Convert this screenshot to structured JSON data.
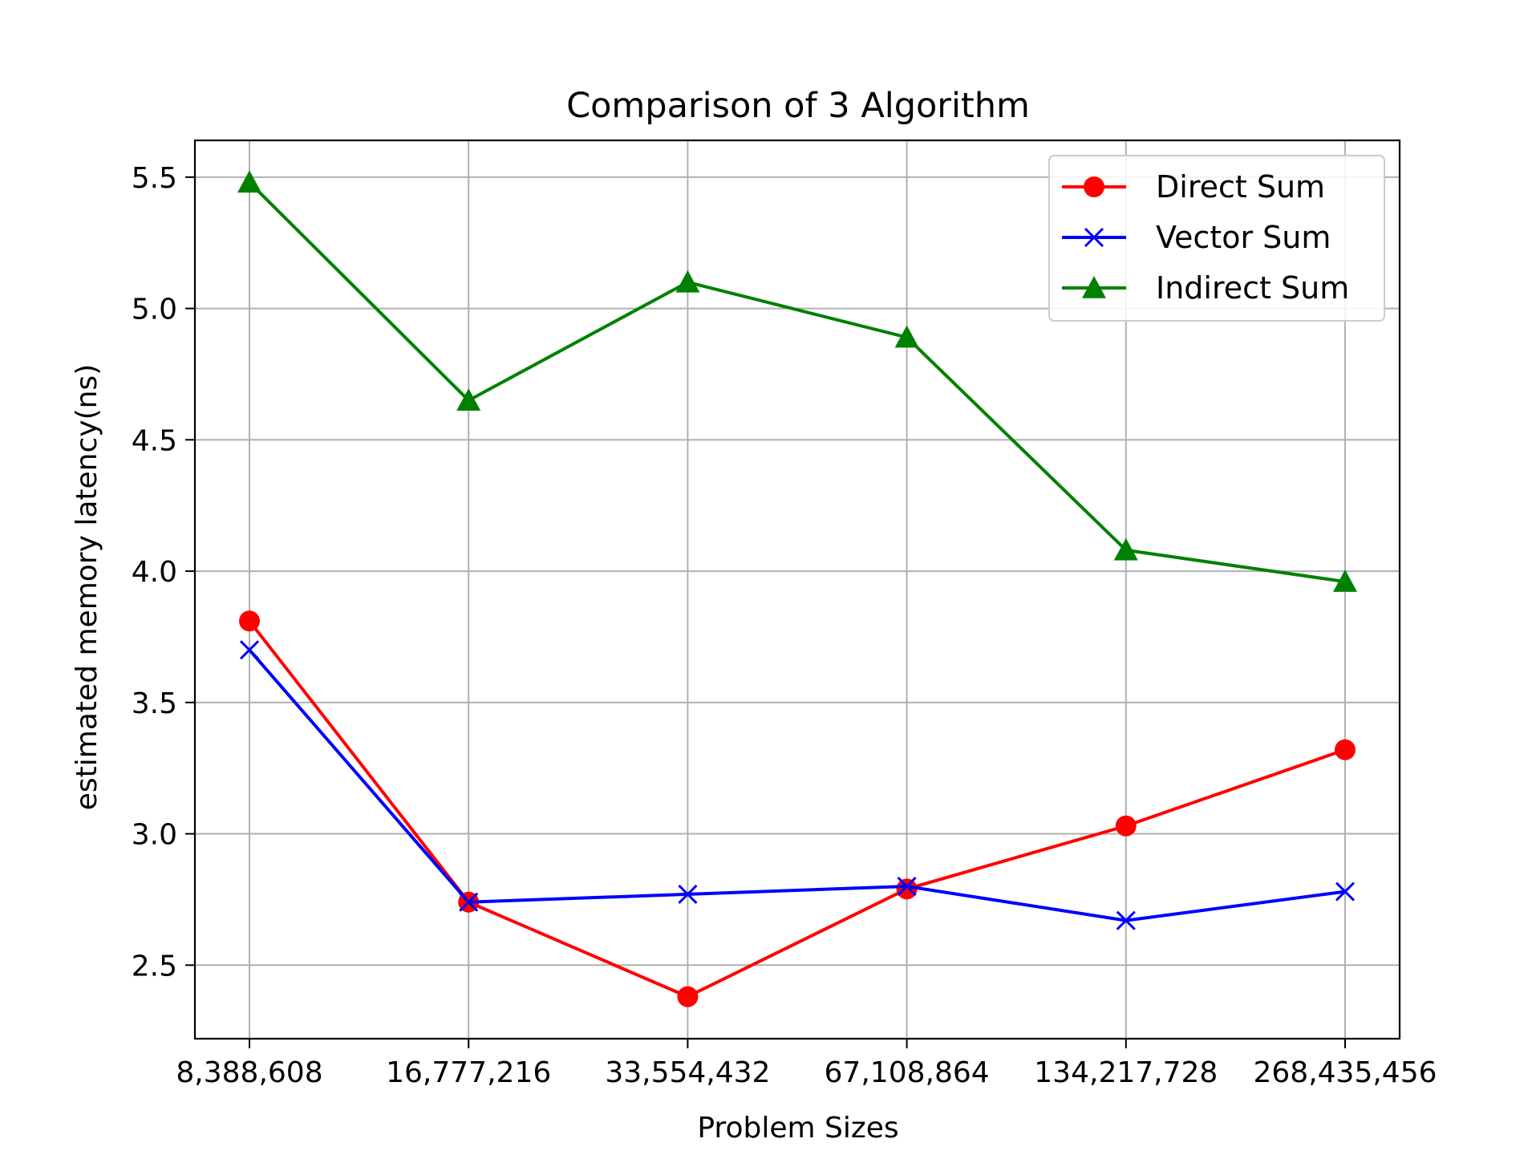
{
  "chart_data": {
    "type": "line",
    "title": "Comparison of 3 Algorithm",
    "xlabel": "Problem Sizes",
    "ylabel": "estimated memory latency(ns)",
    "categories": [
      "8,388,608",
      "16,777,216",
      "33,554,432",
      "67,108,864",
      "134,217,728",
      "268,435,456"
    ],
    "y_ticks": [
      "2.5",
      "3.0",
      "3.5",
      "4.0",
      "4.5",
      "5.0",
      "5.5"
    ],
    "ylim": [
      2.22,
      5.64
    ],
    "grid": true,
    "legend_position": "top-right",
    "series": [
      {
        "name": "Direct Sum",
        "color": "#ff0000",
        "marker": "circle",
        "values": [
          3.81,
          2.74,
          2.38,
          2.79,
          3.03,
          3.32
        ]
      },
      {
        "name": "Vector Sum",
        "color": "#0000ff",
        "marker": "x",
        "values": [
          3.7,
          2.74,
          2.77,
          2.8,
          2.67,
          2.78
        ]
      },
      {
        "name": "Indirect Sum",
        "color": "#008000",
        "marker": "triangle",
        "values": [
          5.48,
          4.65,
          5.1,
          4.89,
          4.08,
          3.96
        ]
      }
    ]
  }
}
